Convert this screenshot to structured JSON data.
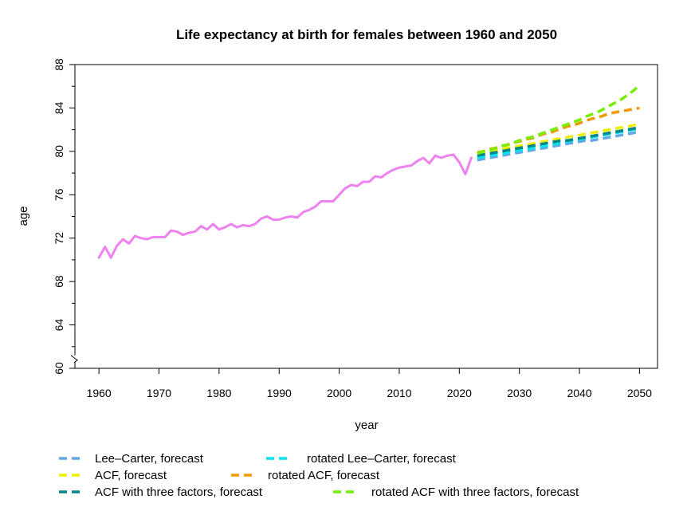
{
  "chart_data": {
    "type": "line",
    "title": "Life expectancy at birth for females between 1960 and 2050",
    "xlabel": "year",
    "ylabel": "age",
    "xlim": [
      1956,
      2053
    ],
    "ylim": [
      60,
      88
    ],
    "x_ticks": [
      1960,
      1970,
      1980,
      1990,
      2000,
      2010,
      2020,
      2030,
      2040,
      2050
    ],
    "x_tick_labels": [
      "1960",
      "1970",
      "1980",
      "1990",
      "2000",
      "2010",
      "2020",
      "2030",
      "2040",
      "2050"
    ],
    "y_ticks": [
      60,
      64,
      68,
      72,
      76,
      80,
      84,
      88
    ],
    "y_tick_labels": [
      "60",
      "64",
      "68",
      "72",
      "76",
      "80",
      "84",
      "88"
    ],
    "y_axis_break": true,
    "grid": false,
    "legend_position": "bottom",
    "observed": {
      "color": "#EE82EE",
      "x": [
        1960,
        1961,
        1962,
        1963,
        1964,
        1965,
        1966,
        1967,
        1968,
        1969,
        1970,
        1971,
        1972,
        1973,
        1974,
        1975,
        1976,
        1977,
        1978,
        1979,
        1980,
        1981,
        1982,
        1983,
        1984,
        1985,
        1986,
        1987,
        1988,
        1989,
        1990,
        1991,
        1992,
        1993,
        1994,
        1995,
        1996,
        1997,
        1998,
        1999,
        2000,
        2001,
        2002,
        2003,
        2004,
        2005,
        2006,
        2007,
        2008,
        2009,
        2010,
        2011,
        2012,
        2013,
        2014,
        2015,
        2016,
        2017,
        2018,
        2019,
        2020,
        2021,
        2022
      ],
      "y": [
        70.2,
        71.2,
        70.2,
        71.3,
        71.9,
        71.5,
        72.2,
        72.0,
        71.9,
        72.1,
        72.1,
        72.1,
        72.7,
        72.6,
        72.3,
        72.5,
        72.6,
        73.1,
        72.8,
        73.3,
        72.8,
        73.0,
        73.3,
        73.0,
        73.2,
        73.1,
        73.3,
        73.8,
        74.0,
        73.7,
        73.7,
        73.9,
        74.0,
        73.9,
        74.4,
        74.6,
        74.9,
        75.4,
        75.4,
        75.4,
        76.0,
        76.6,
        76.9,
        76.8,
        77.2,
        77.2,
        77.7,
        77.6,
        78.0,
        78.3,
        78.5,
        78.6,
        78.7,
        79.1,
        79.4,
        78.9,
        79.6,
        79.4,
        79.6,
        79.7,
        79.0,
        77.9,
        79.4
      ]
    },
    "x": [
      2023,
      2024,
      2025,
      2026,
      2027,
      2028,
      2029,
      2030,
      2031,
      2032,
      2033,
      2034,
      2035,
      2036,
      2037,
      2038,
      2039,
      2040,
      2041,
      2042,
      2043,
      2044,
      2045,
      2046,
      2047,
      2048,
      2049,
      2050
    ],
    "series": [
      {
        "name": "Lee–Carter, forecast",
        "color": "#62A8E5",
        "values": [
          79.2,
          79.3,
          79.4,
          79.5,
          79.6,
          79.7,
          79.8,
          79.9,
          80.0,
          80.1,
          80.2,
          80.3,
          80.4,
          80.5,
          80.6,
          80.7,
          80.8,
          80.9,
          81.0,
          81.0,
          81.1,
          81.2,
          81.3,
          81.4,
          81.5,
          81.6,
          81.7,
          81.8
        ]
      },
      {
        "name": "rotated Lee–Carter, forecast",
        "color": "#00E5EE",
        "values": [
          79.4,
          79.5,
          79.6,
          79.7,
          79.8,
          79.9,
          80.0,
          80.1,
          80.2,
          80.3,
          80.4,
          80.5,
          80.6,
          80.7,
          80.8,
          80.9,
          81.0,
          81.1,
          81.2,
          81.3,
          81.4,
          81.5,
          81.6,
          81.7,
          81.8,
          81.9,
          82.0,
          82.1
        ]
      },
      {
        "name": "ACF, forecast",
        "color": "#EEEE00",
        "values": [
          79.8,
          79.9,
          80.0,
          80.1,
          80.2,
          80.3,
          80.4,
          80.5,
          80.6,
          80.7,
          80.8,
          80.9,
          81.0,
          81.1,
          81.2,
          81.3,
          81.4,
          81.5,
          81.6,
          81.7,
          81.8,
          81.9,
          82.0,
          82.1,
          82.2,
          82.3,
          82.4,
          82.5
        ]
      },
      {
        "name": "rotated ACF, forecast",
        "color": "#EE9A00",
        "values": [
          79.9,
          80.0,
          80.2,
          80.3,
          80.5,
          80.6,
          80.8,
          80.9,
          81.1,
          81.2,
          81.4,
          81.6,
          81.7,
          81.9,
          82.1,
          82.3,
          82.4,
          82.6,
          82.8,
          83.0,
          83.1,
          83.3,
          83.5,
          83.6,
          83.7,
          83.8,
          83.9,
          84.0
        ]
      },
      {
        "name": "ACF with three factors, forecast",
        "color": "#00868B",
        "values": [
          79.6,
          79.7,
          79.8,
          79.9,
          80.0,
          80.1,
          80.2,
          80.3,
          80.4,
          80.5,
          80.6,
          80.7,
          80.8,
          80.9,
          81.0,
          81.0,
          81.1,
          81.2,
          81.3,
          81.4,
          81.5,
          81.6,
          81.7,
          81.8,
          81.9,
          82.0,
          82.1,
          82.2
        ]
      },
      {
        "name": "rotated ACF with three factors, forecast",
        "color": "#76EE00",
        "values": [
          79.8,
          80.0,
          80.1,
          80.3,
          80.5,
          80.6,
          80.8,
          81.0,
          81.2,
          81.3,
          81.5,
          81.7,
          81.9,
          82.1,
          82.3,
          82.5,
          82.7,
          82.9,
          83.2,
          83.4,
          83.6,
          83.9,
          84.2,
          84.5,
          84.8,
          85.2,
          85.6,
          86.1
        ]
      }
    ]
  }
}
